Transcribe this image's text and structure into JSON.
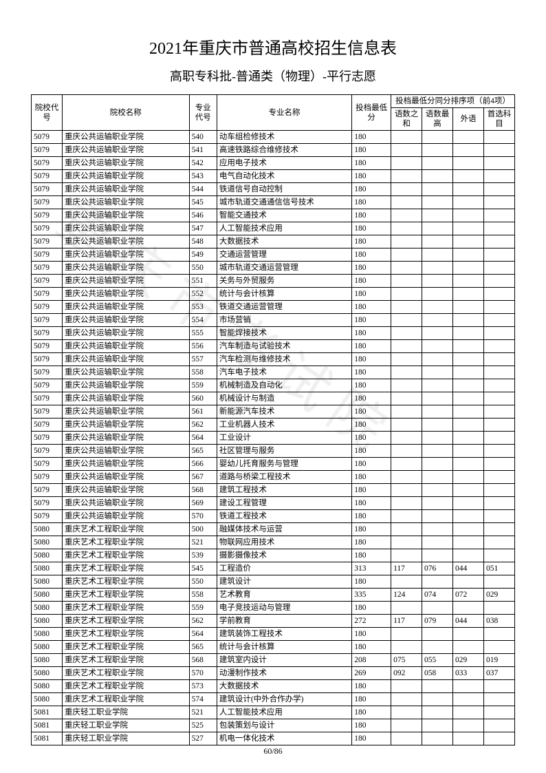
{
  "title": "2021年重庆市普通高校招生信息表",
  "subtitle": "高职专科批-普通类（物理）-平行志愿",
  "watermark": "重庆市考试院",
  "pageNum": "60/86",
  "headers": {
    "schoolCode": "院校代号",
    "schoolName": "院校名称",
    "majorCode": "专业代号",
    "majorName": "专业名称",
    "minScore": "投档最低分",
    "sortGroup": "投档最低分同分排序项（前4项）",
    "sub1": "语数之和",
    "sub2": "语数最高",
    "sub3": "外语",
    "sub4": "首选科目"
  },
  "rows": [
    {
      "c": "5079",
      "s": "重庆公共运输职业学院",
      "mc": "540",
      "m": "动车组检修技术",
      "sc": "180",
      "a": "",
      "b": "",
      "d": "",
      "e": ""
    },
    {
      "c": "5079",
      "s": "重庆公共运输职业学院",
      "mc": "541",
      "m": "高速铁路综合维修技术",
      "sc": "180",
      "a": "",
      "b": "",
      "d": "",
      "e": ""
    },
    {
      "c": "5079",
      "s": "重庆公共运输职业学院",
      "mc": "542",
      "m": "应用电子技术",
      "sc": "180",
      "a": "",
      "b": "",
      "d": "",
      "e": ""
    },
    {
      "c": "5079",
      "s": "重庆公共运输职业学院",
      "mc": "543",
      "m": "电气自动化技术",
      "sc": "180",
      "a": "",
      "b": "",
      "d": "",
      "e": ""
    },
    {
      "c": "5079",
      "s": "重庆公共运输职业学院",
      "mc": "544",
      "m": "铁道信号自动控制",
      "sc": "180",
      "a": "",
      "b": "",
      "d": "",
      "e": ""
    },
    {
      "c": "5079",
      "s": "重庆公共运输职业学院",
      "mc": "545",
      "m": "城市轨道交通通信信号技术",
      "sc": "180",
      "a": "",
      "b": "",
      "d": "",
      "e": ""
    },
    {
      "c": "5079",
      "s": "重庆公共运输职业学院",
      "mc": "546",
      "m": "智能交通技术",
      "sc": "180",
      "a": "",
      "b": "",
      "d": "",
      "e": ""
    },
    {
      "c": "5079",
      "s": "重庆公共运输职业学院",
      "mc": "547",
      "m": "人工智能技术应用",
      "sc": "180",
      "a": "",
      "b": "",
      "d": "",
      "e": ""
    },
    {
      "c": "5079",
      "s": "重庆公共运输职业学院",
      "mc": "548",
      "m": "大数据技术",
      "sc": "180",
      "a": "",
      "b": "",
      "d": "",
      "e": ""
    },
    {
      "c": "5079",
      "s": "重庆公共运输职业学院",
      "mc": "549",
      "m": "交通运营管理",
      "sc": "180",
      "a": "",
      "b": "",
      "d": "",
      "e": ""
    },
    {
      "c": "5079",
      "s": "重庆公共运输职业学院",
      "mc": "550",
      "m": "城市轨道交通运营管理",
      "sc": "180",
      "a": "",
      "b": "",
      "d": "",
      "e": ""
    },
    {
      "c": "5079",
      "s": "重庆公共运输职业学院",
      "mc": "551",
      "m": "关务与外贸服务",
      "sc": "180",
      "a": "",
      "b": "",
      "d": "",
      "e": ""
    },
    {
      "c": "5079",
      "s": "重庆公共运输职业学院",
      "mc": "552",
      "m": "统计与会计核算",
      "sc": "180",
      "a": "",
      "b": "",
      "d": "",
      "e": ""
    },
    {
      "c": "5079",
      "s": "重庆公共运输职业学院",
      "mc": "553",
      "m": "铁道交通运营管理",
      "sc": "180",
      "a": "",
      "b": "",
      "d": "",
      "e": ""
    },
    {
      "c": "5079",
      "s": "重庆公共运输职业学院",
      "mc": "554",
      "m": "市场营销",
      "sc": "180",
      "a": "",
      "b": "",
      "d": "",
      "e": ""
    },
    {
      "c": "5079",
      "s": "重庆公共运输职业学院",
      "mc": "555",
      "m": "智能焊接技术",
      "sc": "180",
      "a": "",
      "b": "",
      "d": "",
      "e": ""
    },
    {
      "c": "5079",
      "s": "重庆公共运输职业学院",
      "mc": "556",
      "m": "汽车制造与试验技术",
      "sc": "180",
      "a": "",
      "b": "",
      "d": "",
      "e": ""
    },
    {
      "c": "5079",
      "s": "重庆公共运输职业学院",
      "mc": "557",
      "m": "汽车检测与维修技术",
      "sc": "180",
      "a": "",
      "b": "",
      "d": "",
      "e": ""
    },
    {
      "c": "5079",
      "s": "重庆公共运输职业学院",
      "mc": "558",
      "m": "汽车电子技术",
      "sc": "180",
      "a": "",
      "b": "",
      "d": "",
      "e": ""
    },
    {
      "c": "5079",
      "s": "重庆公共运输职业学院",
      "mc": "559",
      "m": "机械制造及自动化",
      "sc": "180",
      "a": "",
      "b": "",
      "d": "",
      "e": ""
    },
    {
      "c": "5079",
      "s": "重庆公共运输职业学院",
      "mc": "560",
      "m": "机械设计与制造",
      "sc": "180",
      "a": "",
      "b": "",
      "d": "",
      "e": ""
    },
    {
      "c": "5079",
      "s": "重庆公共运输职业学院",
      "mc": "561",
      "m": "新能源汽车技术",
      "sc": "180",
      "a": "",
      "b": "",
      "d": "",
      "e": ""
    },
    {
      "c": "5079",
      "s": "重庆公共运输职业学院",
      "mc": "562",
      "m": "工业机器人技术",
      "sc": "180",
      "a": "",
      "b": "",
      "d": "",
      "e": ""
    },
    {
      "c": "5079",
      "s": "重庆公共运输职业学院",
      "mc": "564",
      "m": "工业设计",
      "sc": "180",
      "a": "",
      "b": "",
      "d": "",
      "e": ""
    },
    {
      "c": "5079",
      "s": "重庆公共运输职业学院",
      "mc": "565",
      "m": "社区管理与服务",
      "sc": "180",
      "a": "",
      "b": "",
      "d": "",
      "e": ""
    },
    {
      "c": "5079",
      "s": "重庆公共运输职业学院",
      "mc": "566",
      "m": "婴幼儿托育服务与管理",
      "sc": "180",
      "a": "",
      "b": "",
      "d": "",
      "e": ""
    },
    {
      "c": "5079",
      "s": "重庆公共运输职业学院",
      "mc": "567",
      "m": "道路与桥梁工程技术",
      "sc": "180",
      "a": "",
      "b": "",
      "d": "",
      "e": ""
    },
    {
      "c": "5079",
      "s": "重庆公共运输职业学院",
      "mc": "568",
      "m": "建筑工程技术",
      "sc": "180",
      "a": "",
      "b": "",
      "d": "",
      "e": ""
    },
    {
      "c": "5079",
      "s": "重庆公共运输职业学院",
      "mc": "569",
      "m": "建设工程管理",
      "sc": "180",
      "a": "",
      "b": "",
      "d": "",
      "e": ""
    },
    {
      "c": "5079",
      "s": "重庆公共运输职业学院",
      "mc": "570",
      "m": "铁道工程技术",
      "sc": "180",
      "a": "",
      "b": "",
      "d": "",
      "e": ""
    },
    {
      "c": "5080",
      "s": "重庆艺术工程职业学院",
      "mc": "500",
      "m": "融媒体技术与运营",
      "sc": "180",
      "a": "",
      "b": "",
      "d": "",
      "e": ""
    },
    {
      "c": "5080",
      "s": "重庆艺术工程职业学院",
      "mc": "521",
      "m": "物联网应用技术",
      "sc": "180",
      "a": "",
      "b": "",
      "d": "",
      "e": ""
    },
    {
      "c": "5080",
      "s": "重庆艺术工程职业学院",
      "mc": "539",
      "m": "摄影摄像技术",
      "sc": "180",
      "a": "",
      "b": "",
      "d": "",
      "e": ""
    },
    {
      "c": "5080",
      "s": "重庆艺术工程职业学院",
      "mc": "545",
      "m": "工程造价",
      "sc": "313",
      "a": "117",
      "b": "076",
      "d": "044",
      "e": "051"
    },
    {
      "c": "5080",
      "s": "重庆艺术工程职业学院",
      "mc": "550",
      "m": "建筑设计",
      "sc": "180",
      "a": "",
      "b": "",
      "d": "",
      "e": ""
    },
    {
      "c": "5080",
      "s": "重庆艺术工程职业学院",
      "mc": "558",
      "m": "艺术教育",
      "sc": "335",
      "a": "124",
      "b": "074",
      "d": "072",
      "e": "029"
    },
    {
      "c": "5080",
      "s": "重庆艺术工程职业学院",
      "mc": "559",
      "m": "电子竞技运动与管理",
      "sc": "180",
      "a": "",
      "b": "",
      "d": "",
      "e": ""
    },
    {
      "c": "5080",
      "s": "重庆艺术工程职业学院",
      "mc": "562",
      "m": "学前教育",
      "sc": "272",
      "a": "117",
      "b": "079",
      "d": "044",
      "e": "038"
    },
    {
      "c": "5080",
      "s": "重庆艺术工程职业学院",
      "mc": "564",
      "m": "建筑装饰工程技术",
      "sc": "180",
      "a": "",
      "b": "",
      "d": "",
      "e": ""
    },
    {
      "c": "5080",
      "s": "重庆艺术工程职业学院",
      "mc": "565",
      "m": "统计与会计核算",
      "sc": "180",
      "a": "",
      "b": "",
      "d": "",
      "e": ""
    },
    {
      "c": "5080",
      "s": "重庆艺术工程职业学院",
      "mc": "568",
      "m": "建筑室内设计",
      "sc": "208",
      "a": "075",
      "b": "055",
      "d": "029",
      "e": "019"
    },
    {
      "c": "5080",
      "s": "重庆艺术工程职业学院",
      "mc": "570",
      "m": "动漫制作技术",
      "sc": "269",
      "a": "092",
      "b": "058",
      "d": "033",
      "e": "037"
    },
    {
      "c": "5080",
      "s": "重庆艺术工程职业学院",
      "mc": "573",
      "m": "大数据技术",
      "sc": "180",
      "a": "",
      "b": "",
      "d": "",
      "e": ""
    },
    {
      "c": "5080",
      "s": "重庆艺术工程职业学院",
      "mc": "574",
      "m": "建筑设计(中外合作办学)",
      "sc": "180",
      "a": "",
      "b": "",
      "d": "",
      "e": ""
    },
    {
      "c": "5081",
      "s": "重庆轻工职业学院",
      "mc": "521",
      "m": "人工智能技术应用",
      "sc": "180",
      "a": "",
      "b": "",
      "d": "",
      "e": ""
    },
    {
      "c": "5081",
      "s": "重庆轻工职业学院",
      "mc": "525",
      "m": "包装策划与设计",
      "sc": "180",
      "a": "",
      "b": "",
      "d": "",
      "e": ""
    },
    {
      "c": "5081",
      "s": "重庆轻工职业学院",
      "mc": "527",
      "m": "机电一体化技术",
      "sc": "180",
      "a": "",
      "b": "",
      "d": "",
      "e": ""
    }
  ]
}
